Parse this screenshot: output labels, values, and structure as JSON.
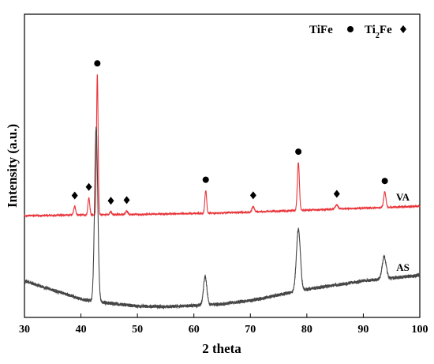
{
  "chart_data": {
    "type": "line",
    "title": "",
    "xlabel": "2 theta",
    "ylabel": "Intensity (a.u.)",
    "xlim": [
      30,
      100
    ],
    "xticks": [
      30,
      40,
      50,
      60,
      70,
      80,
      90,
      100
    ],
    "yticks_shown": false,
    "grid": false,
    "legend": {
      "placement": "top-right",
      "entries": [
        {
          "label_main": "TiFe",
          "label_sub": "",
          "marker": "circle"
        },
        {
          "label_main": "Ti",
          "label_sub": "2",
          "label_tail": "Fe",
          "marker": "diamond"
        }
      ]
    },
    "series": [
      {
        "name": "VA",
        "color": "#e8343a",
        "baseline": [
          [
            30,
            1.02
          ],
          [
            40,
            1.05
          ],
          [
            50,
            1.07
          ],
          [
            60,
            1.1
          ],
          [
            70,
            1.15
          ],
          [
            80,
            1.22
          ],
          [
            90,
            1.29
          ],
          [
            100,
            1.36
          ]
        ],
        "peaks": [
          {
            "x": 38.9,
            "height": 0.3,
            "width": 0.18
          },
          {
            "x": 41.4,
            "height": 0.6,
            "width": 0.16
          },
          {
            "x": 42.9,
            "height": 5.0,
            "width": 0.14
          },
          {
            "x": 45.3,
            "height": 0.1,
            "width": 0.18
          },
          {
            "x": 48.1,
            "height": 0.12,
            "width": 0.2
          },
          {
            "x": 62.1,
            "height": 0.8,
            "width": 0.16
          },
          {
            "x": 70.5,
            "height": 0.2,
            "width": 0.2
          },
          {
            "x": 78.5,
            "height": 1.7,
            "width": 0.18
          },
          {
            "x": 85.3,
            "height": 0.15,
            "width": 0.25
          },
          {
            "x": 93.8,
            "height": 0.55,
            "width": 0.2
          }
        ],
        "markers": [
          {
            "x": 38.9,
            "symbol": "diamond"
          },
          {
            "x": 41.4,
            "symbol": "diamond"
          },
          {
            "x": 42.9,
            "symbol": "circle"
          },
          {
            "x": 45.3,
            "symbol": "diamond"
          },
          {
            "x": 48.1,
            "symbol": "diamond"
          },
          {
            "x": 62.1,
            "symbol": "circle"
          },
          {
            "x": 70.5,
            "symbol": "diamond"
          },
          {
            "x": 78.5,
            "symbol": "circle"
          },
          {
            "x": 85.3,
            "symbol": "diamond"
          },
          {
            "x": 93.8,
            "symbol": "circle"
          }
        ],
        "label_x": 97
      },
      {
        "name": "AS",
        "color": "#454545",
        "baseline": [
          [
            30,
            -1.3
          ],
          [
            33,
            -1.5
          ],
          [
            37,
            -1.75
          ],
          [
            40,
            -1.95
          ],
          [
            43,
            -2.05
          ],
          [
            50,
            -2.2
          ],
          [
            55,
            -2.22
          ],
          [
            60,
            -2.18
          ],
          [
            65,
            -2.12
          ],
          [
            70,
            -2.0
          ],
          [
            75,
            -1.8
          ],
          [
            80,
            -1.6
          ],
          [
            85,
            -1.45
          ],
          [
            90,
            -1.3
          ],
          [
            95,
            -1.2
          ],
          [
            100,
            -1.1
          ]
        ],
        "peaks": [
          {
            "x": 42.7,
            "height": 6.2,
            "width": 0.28
          },
          {
            "x": 62.0,
            "height": 1.0,
            "width": 0.3
          },
          {
            "x": 78.5,
            "height": 2.2,
            "width": 0.35
          },
          {
            "x": 93.7,
            "height": 0.8,
            "width": 0.35
          }
        ],
        "markers": [],
        "label_x": 97
      }
    ]
  }
}
